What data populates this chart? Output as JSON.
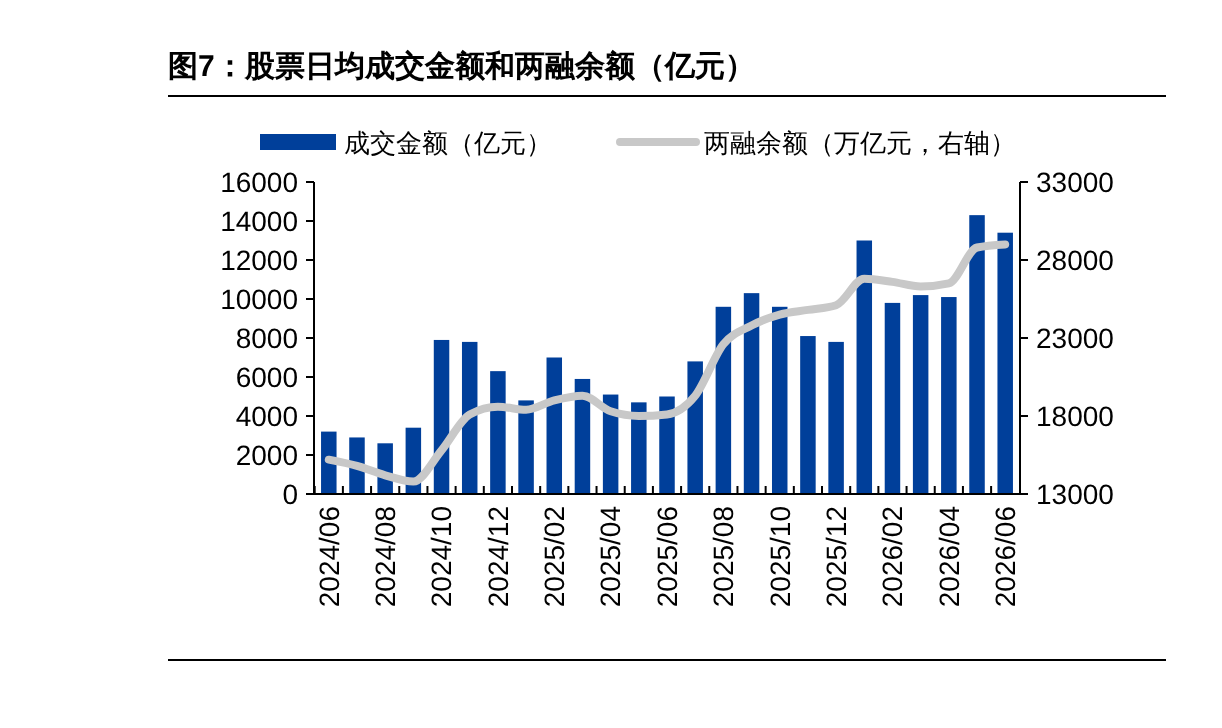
{
  "chart_data": {
    "type": "bar",
    "title": "图7：股票日均成交金额和两融余额（亿元）",
    "categories": [
      "2024/06",
      null,
      "2024/08",
      null,
      "2024/10",
      null,
      "2024/12",
      null,
      "2025/02",
      null,
      "2025/04",
      null,
      "2025/06",
      null,
      "2025/08",
      null,
      "2025/10",
      null,
      "2025/12",
      null,
      "2026/02",
      null,
      "2026/04",
      null,
      "2026/06"
    ],
    "series": [
      {
        "name": "成交金额（亿元）",
        "color": "#003f9a",
        "values": [
          3200,
          2900,
          2600,
          3400,
          7900,
          7800,
          6300,
          4800,
          7000,
          5900,
          5100,
          4700,
          5000,
          6800,
          9600,
          10300,
          9600,
          8100,
          7800,
          13000,
          9800,
          10200,
          10100,
          14300,
          13400
        ]
      },
      {
        "name": "两融余额（万亿元，右轴）",
        "color": "#c8c8c8",
        "type": "line",
        "axis": "y2",
        "values": [
          15200,
          14800,
          14200,
          13800,
          15800,
          18100,
          18600,
          18400,
          19000,
          19300,
          18300,
          18000,
          18100,
          19300,
          22600,
          23800,
          24500,
          24800,
          25100,
          26800,
          26600,
          26300,
          26500,
          28800,
          29000
        ]
      }
    ],
    "ylim": [
      0,
      16000
    ],
    "yticks": [
      0,
      2000,
      4000,
      6000,
      8000,
      10000,
      12000,
      14000,
      16000
    ],
    "y2lim": [
      13000,
      33000
    ],
    "y2ticks": [
      13000,
      18000,
      23000,
      28000,
      33000
    ],
    "legend": "top",
    "grid": false
  }
}
